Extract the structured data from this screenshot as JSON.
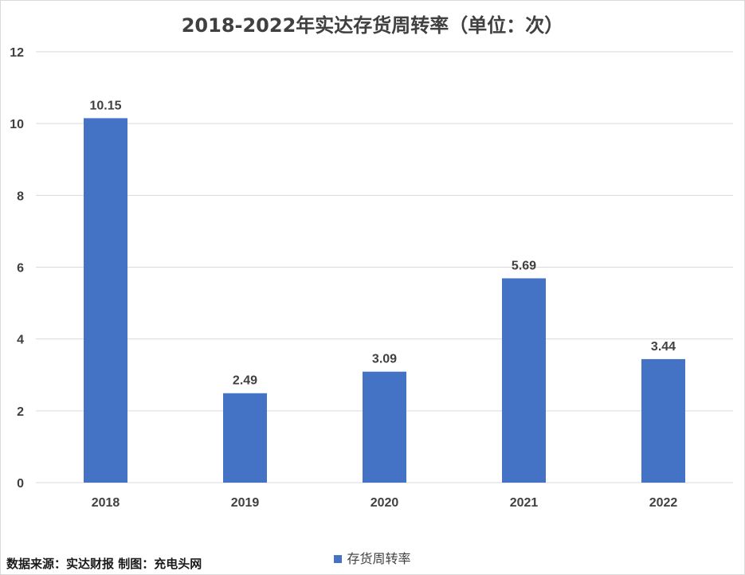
{
  "chart_data": {
    "type": "bar",
    "title": "2018-2022年实达存货周转率（单位：次）",
    "categories": [
      "2018",
      "2019",
      "2020",
      "2021",
      "2022"
    ],
    "series": [
      {
        "name": "存货周转率",
        "values": [
          10.15,
          2.49,
          3.09,
          5.69,
          3.44
        ]
      }
    ],
    "data_labels": [
      "10.15",
      "2.49",
      "3.09",
      "5.69",
      "3.44"
    ],
    "y_ticks": [
      0,
      2,
      4,
      6,
      8,
      10,
      12
    ],
    "ylim": [
      0,
      12
    ],
    "xlabel": "",
    "ylabel": "",
    "grid": true,
    "legend_position": "bottom",
    "bar_color": "#4472c4",
    "grid_color": "#d9d9d9"
  },
  "source_note": "数据来源：实达财报 制图：充电头网"
}
